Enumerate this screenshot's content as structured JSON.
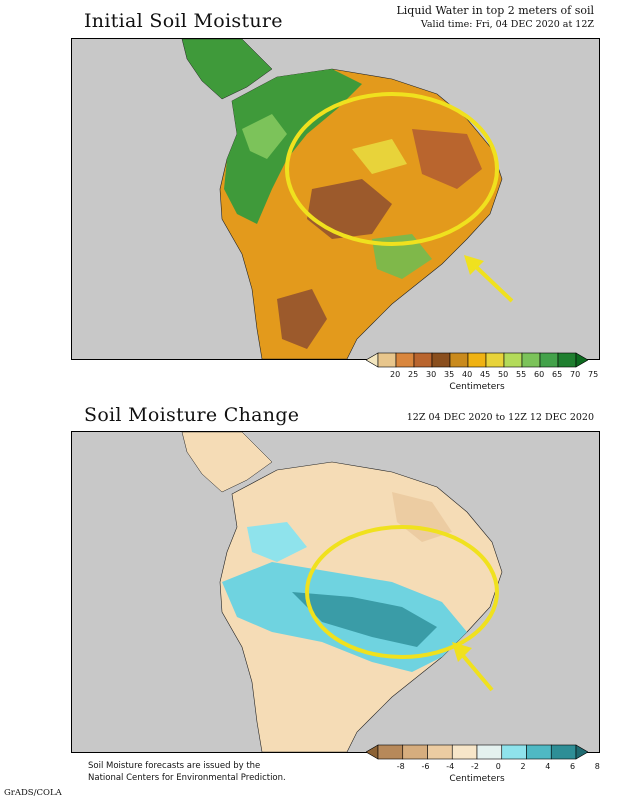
{
  "panel_top": {
    "title": "Initial Soil Moisture",
    "subtitle_line1": "Liquid Water in top 2 meters of soil",
    "subtitle_line2": "Valid time: Fri, 04 DEC 2020 at 12Z",
    "colorbar": {
      "ticks": [
        "20",
        "25",
        "30",
        "35",
        "40",
        "45",
        "50",
        "55",
        "60",
        "65",
        "70",
        "75"
      ],
      "units": "Centimeters",
      "colors": [
        "#f3e6bf",
        "#e8c68c",
        "#d9863d",
        "#b9652e",
        "#8a4f1e",
        "#c98a1c",
        "#f0b212",
        "#e8d33a",
        "#b3db5a",
        "#7cc35a",
        "#43a24a",
        "#1f7f2f",
        "#0d6a1f"
      ]
    },
    "map_colors": {
      "ocean": "#c8c8c8",
      "main": "#e39a1c",
      "north": "#3f9a3a",
      "dry": "#9c5a2c",
      "mid": "#7fb84a"
    }
  },
  "panel_bottom": {
    "title": "Soil Moisture Change",
    "subtitle_line1": "12Z 04 DEC 2020 to 12Z 12 DEC 2020",
    "colorbar": {
      "ticks": [
        "-8",
        "-6",
        "-4",
        "-2",
        "0",
        "2",
        "4",
        "6",
        "8"
      ],
      "units": "Centimeters",
      "colors": [
        "#8c6235",
        "#b7895a",
        "#d6ad7e",
        "#eccca2",
        "#f7e6c9",
        "#e4f1ef",
        "#8fe3ec",
        "#4fb9c4",
        "#2e8e96",
        "#1f6a70"
      ]
    },
    "map_colors": {
      "ocean": "#c8c8c8",
      "main": "#f5dcb6",
      "wet": "#6fd3e0",
      "verywet": "#3a9ca7"
    }
  },
  "highlight_color": "#f0e11e",
  "footnote_line1": "Soil Moisture forecasts are issued by the",
  "footnote_line2": "National Centers for Environmental Prediction.",
  "credit": "GrADS/COLA"
}
